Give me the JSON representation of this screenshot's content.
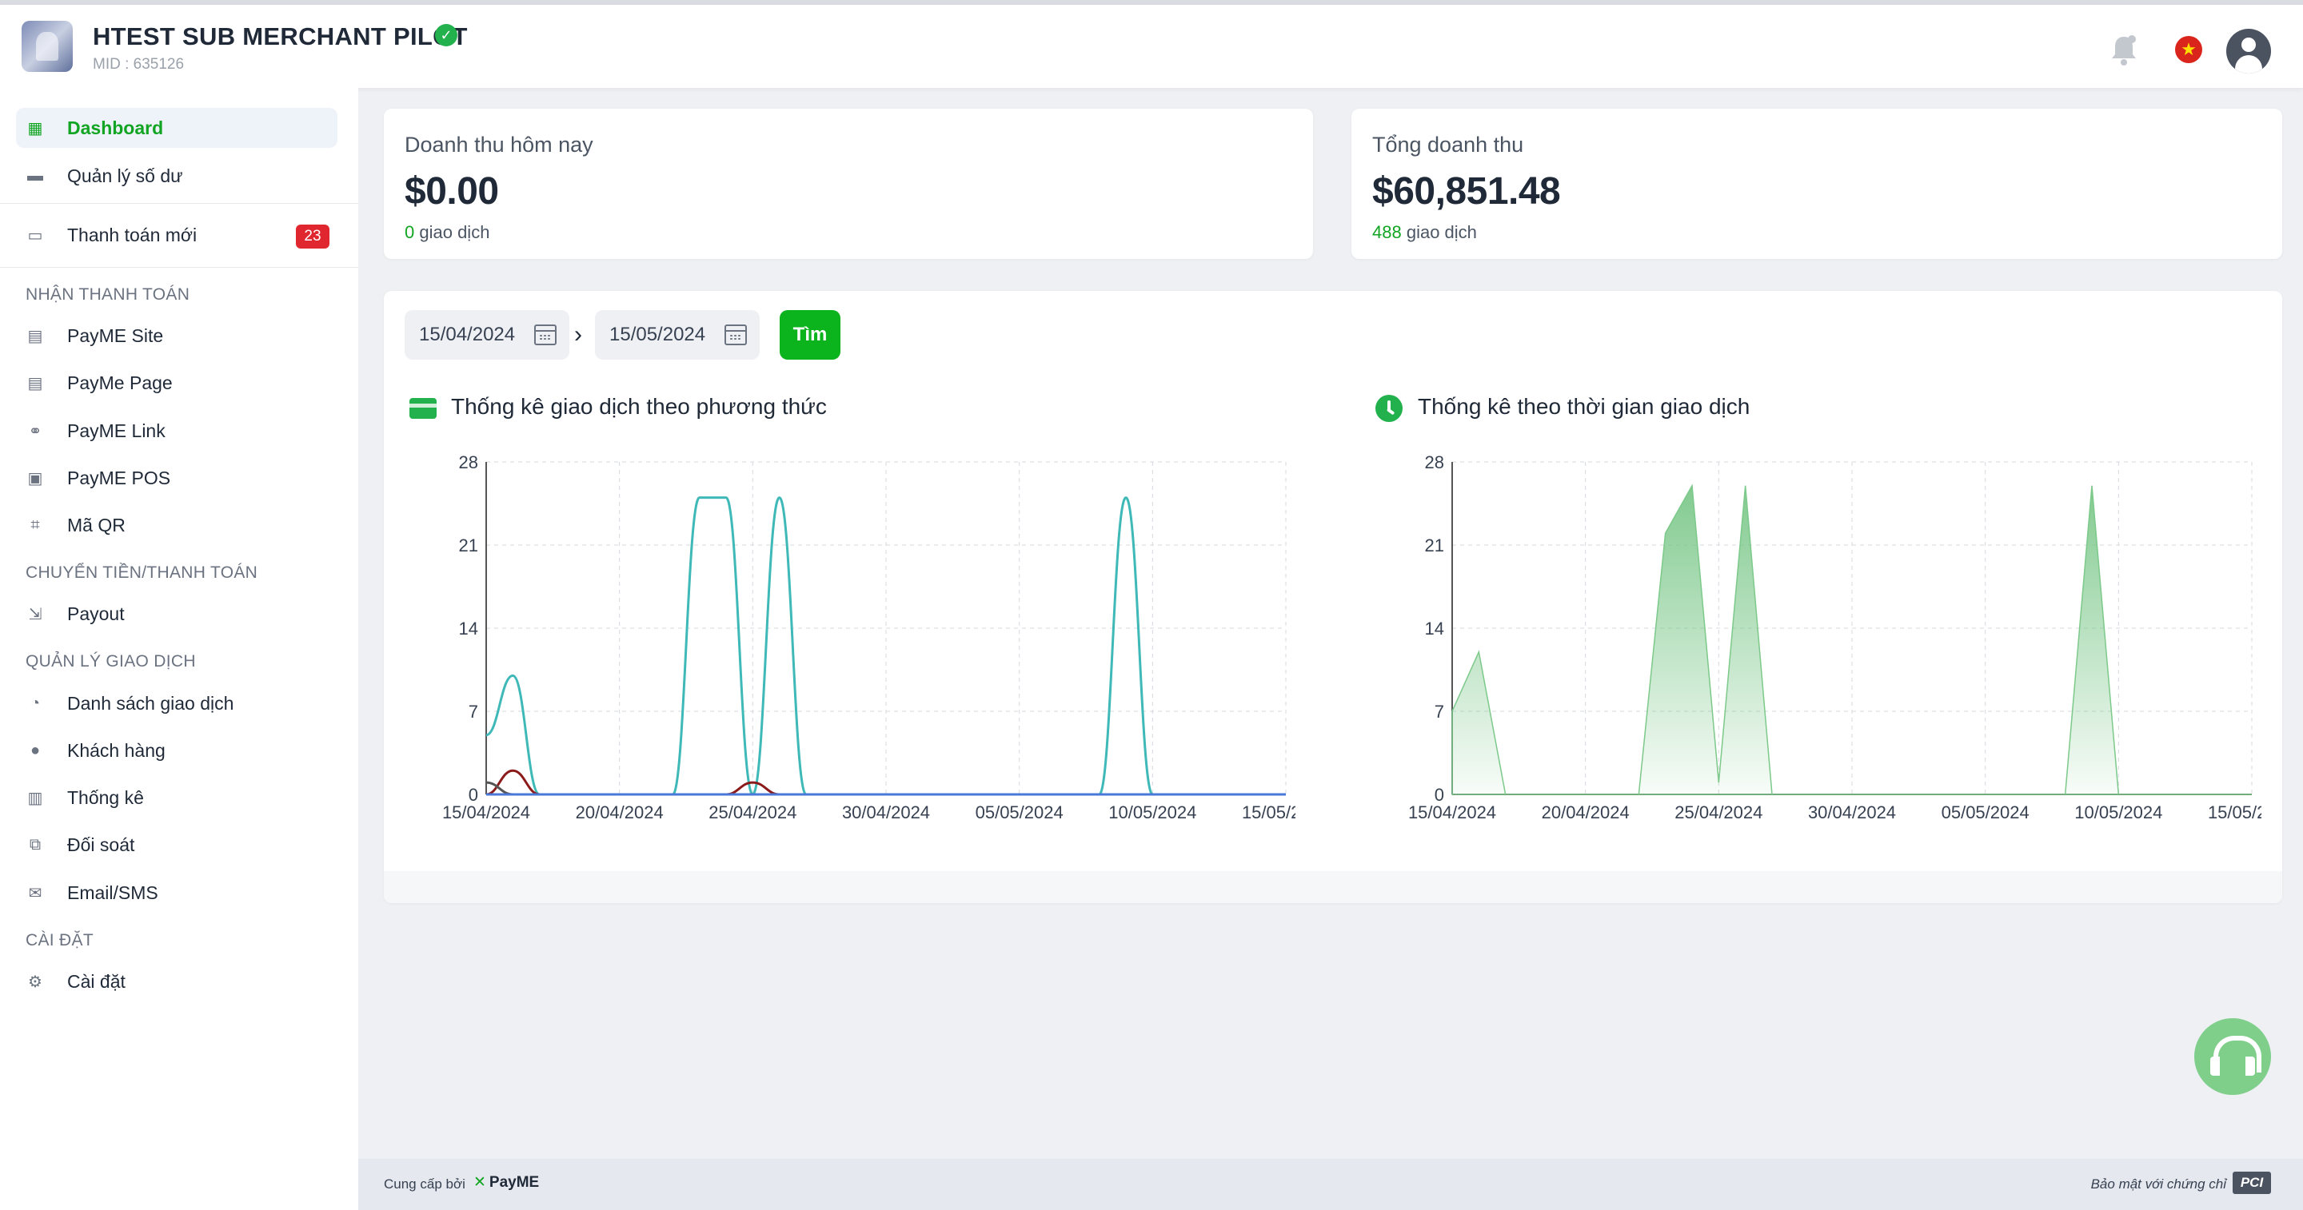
{
  "header": {
    "merchant_name": "HTEST SUB MERCHANT PILOT",
    "mid": "MID : 635126",
    "language": "vi"
  },
  "sidebar": {
    "top_items": [
      {
        "label": "Dashboard",
        "icon": "dashboard-icon",
        "active": true
      },
      {
        "label": "Quản lý số dư",
        "icon": "wallet-icon"
      },
      {
        "label": "Thanh toán mới",
        "icon": "new-payment-icon",
        "badge": "23"
      }
    ],
    "sections": [
      {
        "title": "NHẬN THANH TOÁN",
        "items": [
          {
            "label": "PayME Site",
            "icon": "document-icon"
          },
          {
            "label": "PayMe Page",
            "icon": "page-icon"
          },
          {
            "label": "PayME Link",
            "icon": "link-icon"
          },
          {
            "label": "PayME POS",
            "icon": "pos-icon"
          },
          {
            "label": "Mã QR",
            "icon": "qr-icon"
          }
        ]
      },
      {
        "title": "CHUYỂN TIỀN/THANH TOÁN",
        "items": [
          {
            "label": "Payout",
            "icon": "payout-icon"
          }
        ]
      },
      {
        "title": "QUẢN LÝ GIAO DỊCH",
        "items": [
          {
            "label": "Danh sách giao dịch",
            "icon": "history-icon"
          },
          {
            "label": "Khách hàng",
            "icon": "customer-icon"
          },
          {
            "label": "Thống kê",
            "icon": "bar-chart-icon"
          },
          {
            "label": "Đối soát",
            "icon": "reconcile-icon"
          },
          {
            "label": "Email/SMS",
            "icon": "email-icon"
          }
        ]
      },
      {
        "title": "CÀI ĐẶT",
        "items": [
          {
            "label": "Cài đặt",
            "icon": "gear-icon"
          }
        ]
      }
    ]
  },
  "stats": {
    "today": {
      "title": "Doanh thu hôm nay",
      "amount": "$0.00",
      "count": "0",
      "count_suffix": " giao dịch"
    },
    "total": {
      "title": "Tổng doanh thu",
      "amount": "$60,851.48",
      "count": "488",
      "count_suffix": " giao dịch"
    }
  },
  "filter": {
    "from": "15/04/2024",
    "to": "15/05/2024",
    "search_label": "Tìm"
  },
  "charts_titles": {
    "by_method": "Thống kê giao dịch theo phương thức",
    "by_time": "Thống kê theo thời gian giao dịch"
  },
  "colors": {
    "accent": "#12a524",
    "series_teal": "#3fb8b8",
    "series_darkred": "#8b1a1a",
    "series_magenta": "#e815b8",
    "series_blue": "#4a78d8",
    "series_gray": "#555555"
  },
  "chart_data": [
    {
      "type": "line",
      "title": "Thống kê giao dịch theo phương thức",
      "x": [
        "15/04/2024",
        "16/04/2024",
        "17/04/2024",
        "18/04/2024",
        "19/04/2024",
        "20/04/2024",
        "21/04/2024",
        "22/04/2024",
        "23/04/2024",
        "24/04/2024",
        "25/04/2024",
        "26/04/2024",
        "27/04/2024",
        "28/04/2024",
        "29/04/2024",
        "30/04/2024",
        "01/05/2024",
        "02/05/2024",
        "03/05/2024",
        "04/05/2024",
        "05/05/2024",
        "06/05/2024",
        "07/05/2024",
        "08/05/2024",
        "09/05/2024",
        "10/05/2024",
        "11/05/2024",
        "12/05/2024",
        "13/05/2024",
        "14/05/2024",
        "15/05/2024"
      ],
      "x_ticks": [
        "15/04/2024",
        "20/04/2024",
        "25/04/2024",
        "30/04/2024",
        "05/05/2024",
        "10/05/2024",
        "15/05/2024"
      ],
      "ylim": [
        0,
        28
      ],
      "y_ticks": [
        0,
        7,
        14,
        21,
        28
      ],
      "grid": true,
      "series": [
        {
          "color": "#3fb8b8",
          "values": [
            5,
            10,
            0,
            0,
            0,
            0,
            0,
            0,
            25,
            25,
            0,
            25,
            0,
            0,
            0,
            0,
            0,
            0,
            0,
            0,
            0,
            0,
            0,
            0,
            25,
            0,
            0,
            0,
            0,
            0,
            0
          ]
        },
        {
          "color": "#8b1a1a",
          "values": [
            0,
            2,
            0,
            0,
            0,
            0,
            0,
            0,
            0,
            0,
            1,
            0,
            0,
            0,
            0,
            0,
            0,
            0,
            0,
            0,
            0,
            0,
            0,
            0,
            0,
            0,
            0,
            0,
            0,
            0,
            0
          ]
        },
        {
          "color": "#555555",
          "values": [
            1,
            0,
            0,
            0,
            0,
            0,
            0,
            0,
            0,
            0,
            0,
            0,
            0,
            0,
            0,
            0,
            0,
            0,
            0,
            0,
            0,
            0,
            0,
            0,
            0,
            0,
            0,
            0,
            0,
            0,
            0
          ]
        },
        {
          "color": "#e815b8",
          "values": [
            0,
            0,
            0,
            0,
            0,
            0,
            0,
            0,
            0,
            0,
            0,
            0,
            0,
            0,
            0,
            0,
            0,
            0,
            0,
            0,
            0,
            0,
            0,
            0,
            0,
            0,
            0,
            0,
            0,
            0,
            0
          ]
        },
        {
          "color": "#4a78d8",
          "values": [
            0,
            0,
            0,
            0,
            0,
            0,
            0,
            0,
            0,
            0,
            0,
            0,
            0,
            0,
            0,
            0,
            0,
            0,
            0,
            0,
            0,
            0,
            0,
            0,
            0,
            0,
            0,
            0,
            0,
            0,
            0
          ]
        }
      ]
    },
    {
      "type": "area",
      "title": "Thống kê theo thời gian giao dịch",
      "x": [
        "15/04/2024",
        "16/04/2024",
        "17/04/2024",
        "18/04/2024",
        "19/04/2024",
        "20/04/2024",
        "21/04/2024",
        "22/04/2024",
        "23/04/2024",
        "24/04/2024",
        "25/04/2024",
        "26/04/2024",
        "27/04/2024",
        "28/04/2024",
        "29/04/2024",
        "30/04/2024",
        "01/05/2024",
        "02/05/2024",
        "03/05/2024",
        "04/05/2024",
        "05/05/2024",
        "06/05/2024",
        "07/05/2024",
        "08/05/2024",
        "09/05/2024",
        "10/05/2024",
        "11/05/2024",
        "12/05/2024",
        "13/05/2024",
        "14/05/2024",
        "15/05/2024"
      ],
      "x_ticks": [
        "15/04/2024",
        "20/04/2024",
        "25/04/2024",
        "30/04/2024",
        "05/05/2024",
        "10/05/2024",
        "15/05/2024"
      ],
      "ylim": [
        0,
        28
      ],
      "y_ticks": [
        0,
        7,
        14,
        21,
        28
      ],
      "grid": true,
      "series": [
        {
          "color": "#7cc98a",
          "values": [
            7,
            12,
            0,
            0,
            0,
            0,
            0,
            0,
            22,
            26,
            1,
            26,
            0,
            0,
            0,
            0,
            0,
            0,
            0,
            0,
            0,
            0,
            0,
            0,
            26,
            0,
            0,
            0,
            0,
            0,
            0
          ]
        }
      ]
    }
  ],
  "footer": {
    "powered_by": "Cung cấp bởi",
    "brand": "PayME",
    "pci_text": "Bảo mật với chứng chỉ",
    "pci_logo": "PCI"
  }
}
